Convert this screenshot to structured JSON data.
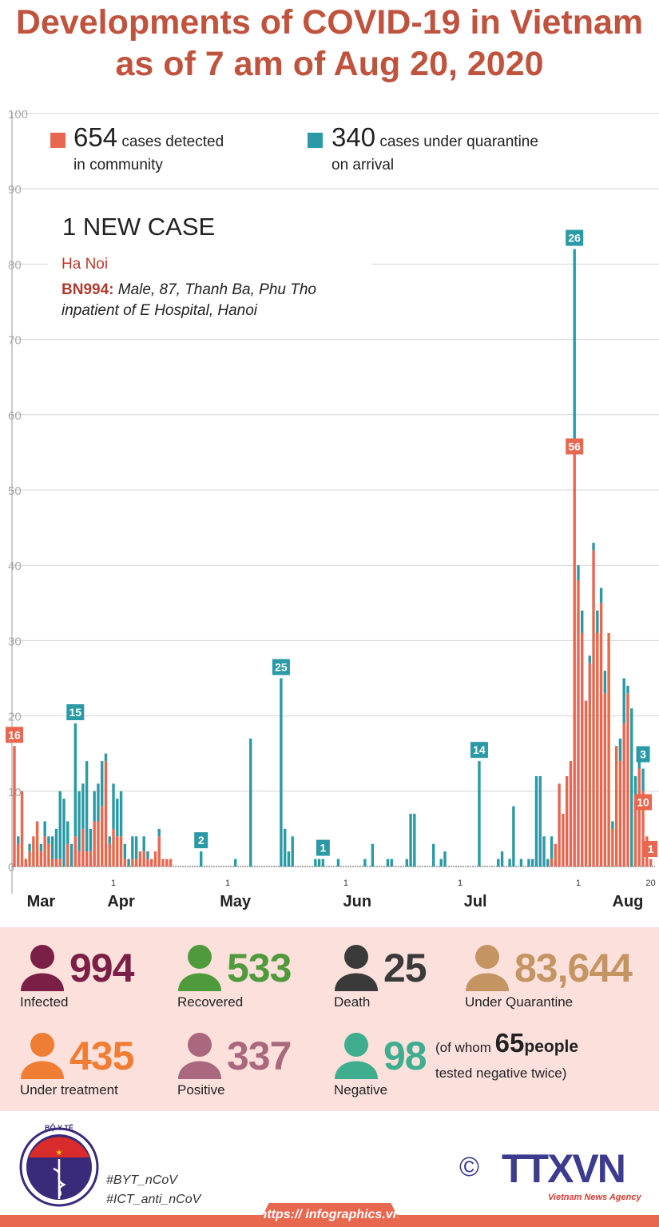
{
  "title": [
    "Developments of COVID-19 in Vietnam",
    "as of 7 am of Aug 20, 2020"
  ],
  "legend": {
    "community": {
      "count": "654",
      "label1": "cases detected",
      "label2": "in community",
      "color": "#e8674f"
    },
    "imported": {
      "count": "340",
      "label1": "cases under quarantine",
      "label2": "on arrival",
      "color": "#2a9aa6"
    }
  },
  "new_case": {
    "title": "1 NEW CASE",
    "city": "Ha Noi",
    "patient_id": "BN994:",
    "patient_desc": "Male, 87, Thanh Ba, Phu Tho",
    "patient_desc2": "inpatient of E Hospital, Hanoi"
  },
  "chart_data": {
    "type": "bar",
    "stacked": true,
    "series": [
      {
        "key": "community",
        "color": "#e8674f"
      },
      {
        "key": "imported",
        "color": "#2a9aa6"
      }
    ],
    "x_range": [
      "2020-03-06",
      "2020-08-20"
    ],
    "ylim": [
      0,
      100
    ],
    "yticks": [
      0,
      10,
      20,
      30,
      40,
      50,
      60,
      70,
      80,
      90,
      100
    ],
    "grid": true,
    "xtick_labels": [
      {
        "date": "2020-04-01",
        "label": "1"
      },
      {
        "date": "2020-05-01",
        "label": "1"
      },
      {
        "date": "2020-06-01",
        "label": "1"
      },
      {
        "date": "2020-07-01",
        "label": "1"
      },
      {
        "date": "2020-08-01",
        "label": "1"
      },
      {
        "date": "2020-08-20",
        "label": "20"
      }
    ],
    "month_labels": [
      {
        "date": "2020-03-13",
        "label": "Mar"
      },
      {
        "date": "2020-04-03",
        "label": "Apr"
      },
      {
        "date": "2020-05-03",
        "label": "May"
      },
      {
        "date": "2020-06-04",
        "label": "Jun"
      },
      {
        "date": "2020-07-05",
        "label": "Jul"
      },
      {
        "date": "2020-08-14",
        "label": "Aug"
      }
    ],
    "days": [
      [
        "2020-03-06",
        16,
        0
      ],
      [
        "2020-03-07",
        3,
        1
      ],
      [
        "2020-03-08",
        10,
        0
      ],
      [
        "2020-03-09",
        1,
        0
      ],
      [
        "2020-03-10",
        2,
        1
      ],
      [
        "2020-03-11",
        4,
        0
      ],
      [
        "2020-03-12",
        6,
        0
      ],
      [
        "2020-03-13",
        2,
        1
      ],
      [
        "2020-03-14",
        4,
        2
      ],
      [
        "2020-03-15",
        3,
        1
      ],
      [
        "2020-03-16",
        1,
        3
      ],
      [
        "2020-03-17",
        1,
        4
      ],
      [
        "2020-03-18",
        1,
        9
      ],
      [
        "2020-03-19",
        0,
        9
      ],
      [
        "2020-03-20",
        3,
        3
      ],
      [
        "2020-03-21",
        0,
        3
      ],
      [
        "2020-03-22",
        4,
        15
      ],
      [
        "2020-03-23",
        2,
        8
      ],
      [
        "2020-03-24",
        5,
        6
      ],
      [
        "2020-03-25",
        2,
        12
      ],
      [
        "2020-03-26",
        2,
        3
      ],
      [
        "2020-03-27",
        6,
        4
      ],
      [
        "2020-03-28",
        6,
        5
      ],
      [
        "2020-03-29",
        8,
        6
      ],
      [
        "2020-03-30",
        14,
        1
      ],
      [
        "2020-03-31",
        3,
        1
      ],
      [
        "2020-04-01",
        5,
        6
      ],
      [
        "2020-04-02",
        4,
        5
      ],
      [
        "2020-04-03",
        4,
        6
      ],
      [
        "2020-04-04",
        1,
        2
      ],
      [
        "2020-04-05",
        0,
        1
      ],
      [
        "2020-04-06",
        1,
        3
      ],
      [
        "2020-04-07",
        1,
        3
      ],
      [
        "2020-04-08",
        2,
        0
      ],
      [
        "2020-04-09",
        2,
        2
      ],
      [
        "2020-04-10",
        1,
        1
      ],
      [
        "2020-04-11",
        1,
        0
      ],
      [
        "2020-04-12",
        2,
        0
      ],
      [
        "2020-04-13",
        4,
        1
      ],
      [
        "2020-04-14",
        1,
        0
      ],
      [
        "2020-04-15",
        1,
        0
      ],
      [
        "2020-04-16",
        1,
        0
      ],
      [
        "2020-04-24",
        0,
        2
      ],
      [
        "2020-05-03",
        0,
        1
      ],
      [
        "2020-05-07",
        0,
        17
      ],
      [
        "2020-05-15",
        0,
        25
      ],
      [
        "2020-05-16",
        0,
        5
      ],
      [
        "2020-05-17",
        0,
        2
      ],
      [
        "2020-05-18",
        0,
        4
      ],
      [
        "2020-05-24",
        0,
        1
      ],
      [
        "2020-05-25",
        0,
        1
      ],
      [
        "2020-05-26",
        0,
        1
      ],
      [
        "2020-05-30",
        0,
        1
      ],
      [
        "2020-06-06",
        0,
        1
      ],
      [
        "2020-06-08",
        0,
        3
      ],
      [
        "2020-06-12",
        0,
        1
      ],
      [
        "2020-06-13",
        0,
        1
      ],
      [
        "2020-06-17",
        0,
        1
      ],
      [
        "2020-06-18",
        0,
        7
      ],
      [
        "2020-06-19",
        0,
        7
      ],
      [
        "2020-06-24",
        0,
        3
      ],
      [
        "2020-06-26",
        0,
        1
      ],
      [
        "2020-06-27",
        0,
        2
      ],
      [
        "2020-07-06",
        0,
        14
      ],
      [
        "2020-07-11",
        0,
        1
      ],
      [
        "2020-07-12",
        0,
        2
      ],
      [
        "2020-07-14",
        0,
        1
      ],
      [
        "2020-07-15",
        0,
        8
      ],
      [
        "2020-07-17",
        0,
        1
      ],
      [
        "2020-07-19",
        0,
        1
      ],
      [
        "2020-07-20",
        0,
        1
      ],
      [
        "2020-07-21",
        0,
        12
      ],
      [
        "2020-07-22",
        0,
        12
      ],
      [
        "2020-07-23",
        0,
        4
      ],
      [
        "2020-07-24",
        0,
        1
      ],
      [
        "2020-07-25",
        1,
        3
      ],
      [
        "2020-07-26",
        3,
        0
      ],
      [
        "2020-07-27",
        11,
        0
      ],
      [
        "2020-07-28",
        7,
        0
      ],
      [
        "2020-07-29",
        12,
        0
      ],
      [
        "2020-07-30",
        14,
        0
      ],
      [
        "2020-07-31",
        56,
        26
      ],
      [
        "2020-08-01",
        38,
        2
      ],
      [
        "2020-08-02",
        31,
        3
      ],
      [
        "2020-08-03",
        22,
        0
      ],
      [
        "2020-08-04",
        27,
        1
      ],
      [
        "2020-08-05",
        42,
        1
      ],
      [
        "2020-08-06",
        31,
        3
      ],
      [
        "2020-08-07",
        35,
        2
      ],
      [
        "2020-08-08",
        23,
        3
      ],
      [
        "2020-08-09",
        31,
        0
      ],
      [
        "2020-08-10",
        5,
        1
      ],
      [
        "2020-08-11",
        16,
        0
      ],
      [
        "2020-08-12",
        14,
        3
      ],
      [
        "2020-08-13",
        19,
        6
      ],
      [
        "2020-08-14",
        23,
        1
      ],
      [
        "2020-08-15",
        0,
        21
      ],
      [
        "2020-08-16",
        9,
        3
      ],
      [
        "2020-08-17",
        13,
        1
      ],
      [
        "2020-08-18",
        10,
        3
      ],
      [
        "2020-08-19",
        4,
        0
      ],
      [
        "2020-08-20",
        1,
        0
      ]
    ],
    "annotations": [
      {
        "date": "2020-03-06",
        "series": "community",
        "text": "16"
      },
      {
        "date": "2020-03-22",
        "series": "imported",
        "text": "15"
      },
      {
        "date": "2020-04-24",
        "series": "imported",
        "text": "2"
      },
      {
        "date": "2020-05-15",
        "series": "imported",
        "text": "25"
      },
      {
        "date": "2020-05-26",
        "series": "imported",
        "text": "1"
      },
      {
        "date": "2020-07-06",
        "series": "imported",
        "text": "14"
      },
      {
        "date": "2020-07-31",
        "series": "imported",
        "text": "26"
      },
      {
        "date": "2020-07-31",
        "series": "community",
        "text": "56"
      },
      {
        "date": "2020-08-18",
        "series": "imported",
        "text": "3"
      },
      {
        "date": "2020-08-18",
        "series": "community",
        "text": "10"
      },
      {
        "date": "2020-08-20",
        "series": "community",
        "text": "1"
      }
    ]
  },
  "stats": [
    {
      "value": "994",
      "label": "Infected",
      "color": "#7a1f45"
    },
    {
      "value": "533",
      "label": "Recovered",
      "color": "#4f9a3a"
    },
    {
      "value": "25",
      "label": "Death",
      "color": "#3a3a3a"
    },
    {
      "value": "83,644",
      "label": "Under Quarantine",
      "color": "#c49563"
    },
    {
      "value": "435",
      "label": "Under treatment",
      "color": "#ef7d34"
    },
    {
      "value": "337",
      "label": "Positive",
      "color": "#a9687d"
    },
    {
      "value": "98",
      "label": "Negative",
      "color": "#3fae8e"
    }
  ],
  "negative_note": {
    "prefix": "(of whom",
    "count": "65",
    "suffix": "people",
    "line2": "tested negative twice)"
  },
  "footer": {
    "logo_top": "BỘ Y TẾ",
    "logo_bottom": "MINISTRY OF HEALTH",
    "hashtags": [
      "#BYT_nCoV",
      "#ICT_anti_nCoV"
    ],
    "copyright": "©",
    "agency": "TTXVN",
    "agency_sub": "Vietnam News Agency",
    "url": "https:// infographics.vn"
  }
}
